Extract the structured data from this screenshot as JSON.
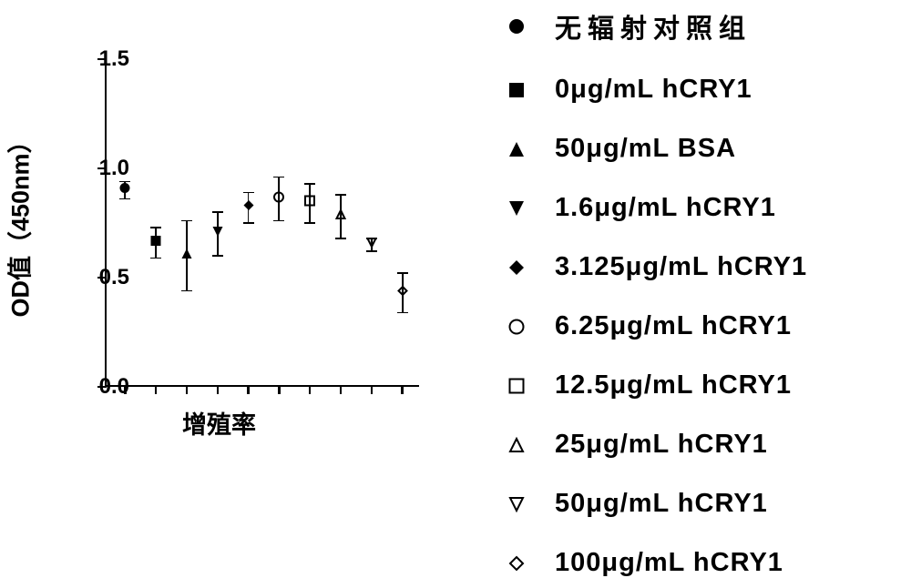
{
  "chart": {
    "type": "scatter",
    "y_label": "OD值（450nm）",
    "x_label": "增殖率",
    "ylim": [
      0.0,
      1.5
    ],
    "yticks": [
      0.0,
      0.5,
      1.0,
      1.5
    ],
    "ytick_labels": [
      "0.0",
      "0.5",
      "1.0",
      "1.5"
    ],
    "background_color": "#ffffff",
    "axis_color": "#000000",
    "marker_color": "#000000",
    "label_fontsize": 27,
    "tick_fontsize": 24,
    "legend_fontsize": 29,
    "marker_size": 13,
    "error_cap_width": 12,
    "series": [
      {
        "marker": "filled-circle",
        "label": "无辐射对照组",
        "x": 0,
        "y": 0.9,
        "err": 0.04,
        "cjk": true
      },
      {
        "marker": "filled-square",
        "label": "0μg/mL hCRY1",
        "x": 1,
        "y": 0.66,
        "err": 0.07
      },
      {
        "marker": "filled-triangle-up",
        "label": "50μg/mL BSA",
        "x": 2,
        "y": 0.6,
        "err": 0.16
      },
      {
        "marker": "filled-triangle-down",
        "label": "1.6μg/mL hCRY1",
        "x": 3,
        "y": 0.7,
        "err": 0.1
      },
      {
        "marker": "filled-diamond",
        "label": "3.125μg/mL hCRY1",
        "x": 4,
        "y": 0.82,
        "err": 0.07
      },
      {
        "marker": "open-circle",
        "label": "6.25μg/mL hCRY1",
        "x": 5,
        "y": 0.86,
        "err": 0.1
      },
      {
        "marker": "open-square",
        "label": "12.5μg/mL hCRY1",
        "x": 6,
        "y": 0.84,
        "err": 0.09
      },
      {
        "marker": "open-triangle-up",
        "label": "25μg/mL hCRY1",
        "x": 7,
        "y": 0.78,
        "err": 0.1
      },
      {
        "marker": "open-triangle-down",
        "label": "50μg/mL hCRY1",
        "x": 8,
        "y": 0.65,
        "err": 0.03
      },
      {
        "marker": "open-diamond",
        "label": "100μg/mL hCRY1",
        "x": 9,
        "y": 0.43,
        "err": 0.09
      }
    ]
  }
}
